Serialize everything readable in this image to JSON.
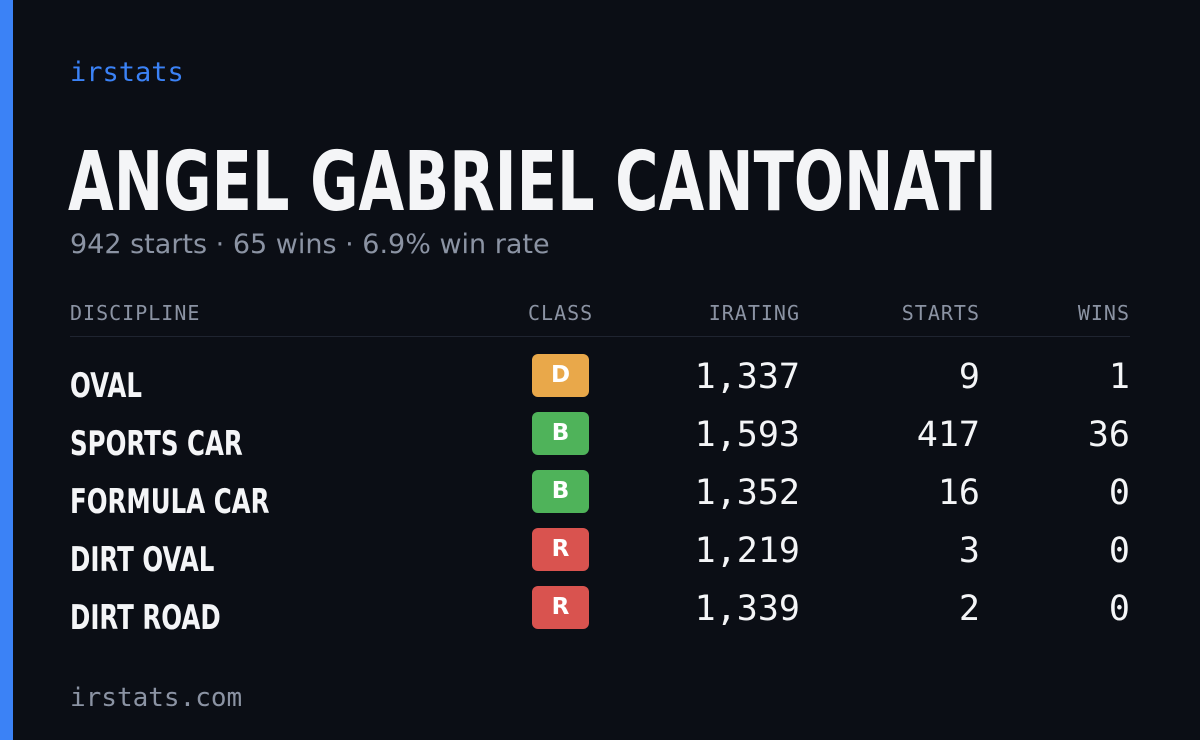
{
  "brand": "irstats",
  "player": {
    "name": "ANGEL GABRIEL CANTONATI",
    "summary": "942 starts · 65 wins · 6.9% win rate"
  },
  "table": {
    "headers": {
      "discipline": "DISCIPLINE",
      "class": "CLASS",
      "irating": "IRATING",
      "starts": "STARTS",
      "wins": "WINS"
    },
    "rows": [
      {
        "discipline": "OVAL",
        "class": "D",
        "class_color": "#e9a84a",
        "irating": "1,337",
        "starts": "9",
        "wins": "1"
      },
      {
        "discipline": "SPORTS CAR",
        "class": "B",
        "class_color": "#4fb35a",
        "irating": "1,593",
        "starts": "417",
        "wins": "36"
      },
      {
        "discipline": "FORMULA CAR",
        "class": "B",
        "class_color": "#4fb35a",
        "irating": "1,352",
        "starts": "16",
        "wins": "0"
      },
      {
        "discipline": "DIRT OVAL",
        "class": "R",
        "class_color": "#d9534f",
        "irating": "1,219",
        "starts": "3",
        "wins": "0"
      },
      {
        "discipline": "DIRT ROAD",
        "class": "R",
        "class_color": "#d9534f",
        "irating": "1,339",
        "starts": "2",
        "wins": "0"
      }
    ]
  },
  "footer": "irstats.com",
  "colors": {
    "accent": "#3b82f6",
    "background": "#0b0e15"
  }
}
